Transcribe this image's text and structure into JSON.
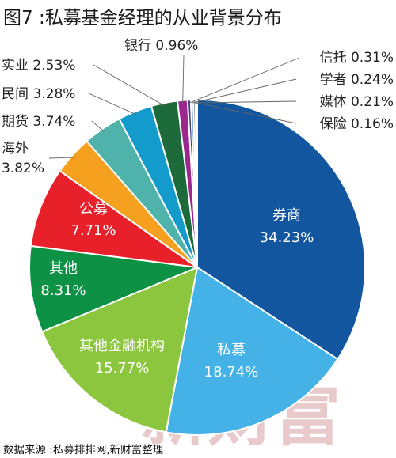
{
  "chart_data": {
    "type": "pie",
    "title": "图7 :私募基金经理的从业背景分布",
    "slices": [
      {
        "label": "券商",
        "value": 34.23,
        "display": "34.23%",
        "color": "#11569f"
      },
      {
        "label": "私募",
        "value": 18.74,
        "display": "18.74%",
        "color": "#45b2e7"
      },
      {
        "label": "其他金融机构",
        "value": 15.77,
        "display": "15.77%",
        "color": "#8cc63e"
      },
      {
        "label": "其他",
        "value": 8.31,
        "display": "8.31%",
        "color": "#0c9145"
      },
      {
        "label": "公募",
        "value": 7.71,
        "display": "7.71%",
        "color": "#e7202a"
      },
      {
        "label": "海外",
        "value": 3.82,
        "display": "3.82%",
        "color": "#f5a01e"
      },
      {
        "label": "期货",
        "value": 3.74,
        "display": "3.74%",
        "color": "#4fb2ab"
      },
      {
        "label": "民间",
        "value": 3.28,
        "display": "3.28%",
        "color": "#139bcc"
      },
      {
        "label": "实业",
        "value": 2.53,
        "display": "2.53%",
        "color": "#1d6a3b"
      },
      {
        "label": "银行",
        "value": 0.96,
        "display": "0.96%",
        "color": "#9c278f"
      },
      {
        "label": "信托",
        "value": 0.31,
        "display": "0.31%",
        "color": "#4a3b86"
      },
      {
        "label": "学者",
        "value": 0.24,
        "display": "0.24%",
        "color": "#3e7fc1"
      },
      {
        "label": "媒体",
        "value": 0.21,
        "display": "0.21%",
        "color": "#6d6e71"
      },
      {
        "label": "保险",
        "value": 0.16,
        "display": "0.16%",
        "color": "#a7a9ac"
      }
    ]
  },
  "source": "数据来源 :私募排排网,新财富整理",
  "watermark": "新财富"
}
